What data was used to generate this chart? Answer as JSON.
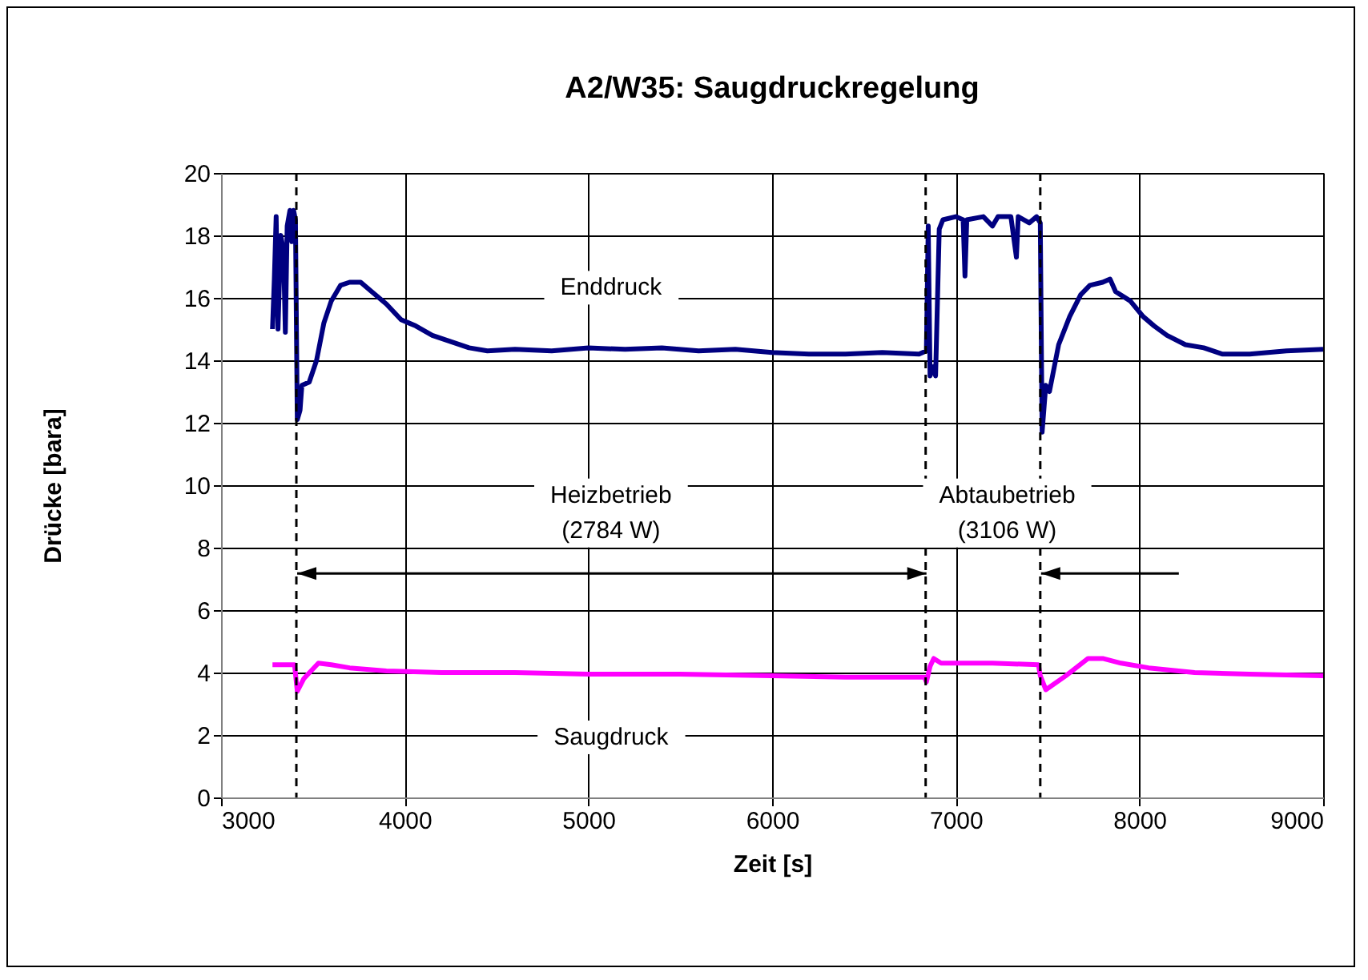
{
  "chart_data": {
    "type": "line",
    "title": "A2/W35: Saugdruckregelung",
    "xlabel": "Zeit [s]",
    "ylabel": "Drücke [bara]",
    "xlim": [
      3000,
      9000
    ],
    "xticks": [
      3000,
      4000,
      5000,
      6000,
      7000,
      8000,
      9000
    ],
    "ylim": [
      0,
      20
    ],
    "yticks": [
      0,
      2,
      4,
      6,
      8,
      10,
      12,
      14,
      16,
      18,
      20
    ],
    "grid": true,
    "legend": false,
    "marker": "none",
    "line_style": "solid",
    "series": [
      {
        "name": "Enddruck",
        "color": "#000080",
        "x": [
          3280,
          3290,
          3300,
          3310,
          3325,
          3340,
          3350,
          3360,
          3375,
          3385,
          3395,
          3405,
          3415,
          3430,
          3440,
          3480,
          3520,
          3560,
          3600,
          3650,
          3700,
          3760,
          3820,
          3900,
          3980,
          4060,
          4150,
          4250,
          4350,
          4450,
          4600,
          4800,
          5000,
          5200,
          5400,
          5600,
          5800,
          6000,
          6200,
          6400,
          6600,
          6800,
          6840,
          6850,
          6860,
          6880,
          6890,
          6910,
          6930,
          7000,
          7040,
          7050,
          7060,
          7150,
          7200,
          7230,
          7300,
          7330,
          7340,
          7400,
          7440,
          7460,
          7470,
          7490,
          7510,
          7560,
          7620,
          7680,
          7730,
          7800,
          7840,
          7870,
          7950,
          8020,
          8080,
          8150,
          8250,
          8350,
          8450,
          8600,
          8800,
          9000
        ],
        "values": [
          15.0,
          16.6,
          18.6,
          15.0,
          18.0,
          17.5,
          14.9,
          18.3,
          18.8,
          17.8,
          18.8,
          18.5,
          12.1,
          12.4,
          13.2,
          13.3,
          14.0,
          15.2,
          15.9,
          16.4,
          16.5,
          16.5,
          16.2,
          15.8,
          15.3,
          15.1,
          14.8,
          14.6,
          14.4,
          14.3,
          14.35,
          14.3,
          14.4,
          14.35,
          14.4,
          14.3,
          14.35,
          14.25,
          14.2,
          14.2,
          14.25,
          14.2,
          14.3,
          18.3,
          13.5,
          13.8,
          13.5,
          18.2,
          18.5,
          18.6,
          18.5,
          16.7,
          18.5,
          18.6,
          18.3,
          18.6,
          18.6,
          17.3,
          18.6,
          18.4,
          18.6,
          18.4,
          11.7,
          13.2,
          13.0,
          14.5,
          15.4,
          16.1,
          16.4,
          16.5,
          16.6,
          16.2,
          15.9,
          15.4,
          15.1,
          14.8,
          14.5,
          14.4,
          14.2,
          14.2,
          14.3,
          14.35
        ]
      },
      {
        "name": "Saugdruck",
        "color": "#ff00ff",
        "x": [
          3280,
          3400,
          3415,
          3450,
          3530,
          3600,
          3700,
          3900,
          4200,
          4600,
          5000,
          5500,
          6000,
          6400,
          6830,
          6840,
          6860,
          6880,
          6920,
          7200,
          7450,
          7460,
          7490,
          7600,
          7720,
          7800,
          7900,
          8050,
          8300,
          8600,
          9000
        ],
        "values": [
          4.25,
          4.25,
          3.4,
          3.8,
          4.3,
          4.25,
          4.15,
          4.05,
          4.0,
          4.0,
          3.95,
          3.95,
          3.9,
          3.85,
          3.85,
          3.7,
          4.2,
          4.45,
          4.3,
          4.3,
          4.25,
          3.9,
          3.45,
          3.9,
          4.45,
          4.45,
          4.3,
          4.15,
          4.0,
          3.95,
          3.9
        ]
      }
    ],
    "ref_lines": [
      {
        "axis": "x",
        "value": 3410,
        "line_style": "dashed",
        "color": "#000000"
      },
      {
        "axis": "x",
        "value": 6836,
        "line_style": "dashed",
        "color": "#000000"
      },
      {
        "axis": "x",
        "value": 7460,
        "line_style": "dashed",
        "color": "#000000"
      }
    ],
    "annotations": [
      "Heizbetrieb\n(2784 W)",
      "Abtaubetrieb\n(3106 W)"
    ]
  }
}
